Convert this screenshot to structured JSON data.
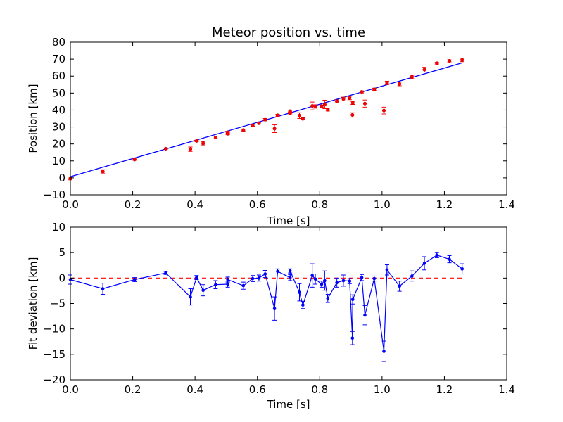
{
  "figure_title": "Meteor position vs. time",
  "colors": {
    "points": "#ff0000",
    "line": "#0000ff",
    "zero": "#ff0000",
    "axes": "#000000"
  },
  "chart_data": [
    {
      "type": "scatter",
      "title": "Meteor position vs. time",
      "xlabel": "Time [s]",
      "ylabel": "Position [km]",
      "xlim": [
        0,
        1.4
      ],
      "ylim": [
        -10,
        80
      ],
      "xticks": [
        "0.0",
        "0.2",
        "0.4",
        "0.6",
        "0.8",
        "1.0",
        "1.2",
        "1.4"
      ],
      "yticks": [
        "−10",
        "0",
        "10",
        "20",
        "30",
        "40",
        "50",
        "60",
        "70",
        "80"
      ],
      "grid": false,
      "points": [
        {
          "x": 0.0,
          "y": -0.3,
          "err": 0.9
        },
        {
          "x": 0.104,
          "y": 3.8,
          "err": 1.0
        },
        {
          "x": 0.206,
          "y": 10.8,
          "err": 0.4
        },
        {
          "x": 0.306,
          "y": 17.2,
          "err": 0.4
        },
        {
          "x": 0.385,
          "y": 16.9,
          "err": 1.3
        },
        {
          "x": 0.405,
          "y": 21.8,
          "err": 0.4
        },
        {
          "x": 0.426,
          "y": 20.4,
          "err": 1.0
        },
        {
          "x": 0.466,
          "y": 23.8,
          "err": 0.8
        },
        {
          "x": 0.505,
          "y": 26.0,
          "err": 0.6
        },
        {
          "x": 0.505,
          "y": 26.9,
          "err": 0.5
        },
        {
          "x": 0.555,
          "y": 28.2,
          "err": 0.6
        },
        {
          "x": 0.585,
          "y": 31.0,
          "err": 0.6
        },
        {
          "x": 0.605,
          "y": 32.2,
          "err": 0.5
        },
        {
          "x": 0.625,
          "y": 34.3,
          "err": 0.7
        },
        {
          "x": 0.655,
          "y": 29.0,
          "err": 2.3
        },
        {
          "x": 0.665,
          "y": 36.9,
          "err": 0.6
        },
        {
          "x": 0.705,
          "y": 38.3,
          "err": 0.6
        },
        {
          "x": 0.705,
          "y": 39.3,
          "err": 0.6
        },
        {
          "x": 0.735,
          "y": 36.7,
          "err": 1.7
        },
        {
          "x": 0.746,
          "y": 34.8,
          "err": 0.6
        },
        {
          "x": 0.776,
          "y": 42.4,
          "err": 2.3
        },
        {
          "x": 0.786,
          "y": 42.1,
          "err": 1.0
        },
        {
          "x": 0.806,
          "y": 42.3,
          "err": 0.6
        },
        {
          "x": 0.816,
          "y": 43.3,
          "err": 2.5
        },
        {
          "x": 0.826,
          "y": 40.2,
          "err": 0.8
        },
        {
          "x": 0.855,
          "y": 45.1,
          "err": 0.9
        },
        {
          "x": 0.876,
          "y": 46.5,
          "err": 1.1
        },
        {
          "x": 0.896,
          "y": 47.1,
          "err": 1.0
        },
        {
          "x": 0.905,
          "y": 37.1,
          "err": 1.3
        },
        {
          "x": 0.906,
          "y": 44.2,
          "err": 0.9
        },
        {
          "x": 0.935,
          "y": 50.7,
          "err": 0.6
        },
        {
          "x": 0.945,
          "y": 43.8,
          "err": 2.1
        },
        {
          "x": 0.975,
          "y": 52.2,
          "err": 0.7
        },
        {
          "x": 1.006,
          "y": 39.7,
          "err": 2.0
        },
        {
          "x": 1.016,
          "y": 56.0,
          "err": 1.0
        },
        {
          "x": 1.056,
          "y": 55.4,
          "err": 1.1
        },
        {
          "x": 1.096,
          "y": 59.5,
          "err": 1.0
        },
        {
          "x": 1.136,
          "y": 63.8,
          "err": 1.4
        },
        {
          "x": 1.176,
          "y": 67.6,
          "err": 0.5
        },
        {
          "x": 1.216,
          "y": 69.0,
          "err": 0.6
        },
        {
          "x": 1.257,
          "y": 69.5,
          "err": 1.0
        }
      ],
      "fit_line": {
        "x": [
          0.0,
          1.257
        ],
        "y": [
          0.7,
          67.8
        ]
      }
    },
    {
      "type": "line",
      "title": "",
      "xlabel": "Time [s]",
      "ylabel": "Fit deviation [km]",
      "xlim": [
        0,
        1.4
      ],
      "ylim": [
        -20,
        10
      ],
      "xticks": [
        "0.0",
        "0.2",
        "0.4",
        "0.6",
        "0.8",
        "1.0",
        "1.2",
        "1.4"
      ],
      "yticks": [
        "−20",
        "−15",
        "−10",
        "−5",
        "0",
        "5",
        "10"
      ],
      "grid": false,
      "reference_line": {
        "x": [
          0.0,
          1.257
        ],
        "y": [
          0,
          0
        ]
      },
      "points": [
        {
          "x": 0.0,
          "y": -0.3,
          "err": 0.9
        },
        {
          "x": 0.104,
          "y": -2.1,
          "err": 1.1
        },
        {
          "x": 0.206,
          "y": -0.3,
          "err": 0.4
        },
        {
          "x": 0.306,
          "y": 1.0,
          "err": 0.3
        },
        {
          "x": 0.385,
          "y": -3.7,
          "err": 1.6
        },
        {
          "x": 0.405,
          "y": 0.1,
          "err": 0.4
        },
        {
          "x": 0.426,
          "y": -2.4,
          "err": 1.1
        },
        {
          "x": 0.466,
          "y": -1.3,
          "err": 0.8
        },
        {
          "x": 0.505,
          "y": -1.2,
          "err": 0.6
        },
        {
          "x": 0.505,
          "y": -0.3,
          "err": 0.5
        },
        {
          "x": 0.555,
          "y": -1.5,
          "err": 0.7
        },
        {
          "x": 0.585,
          "y": -0.1,
          "err": 0.6
        },
        {
          "x": 0.605,
          "y": 0.0,
          "err": 0.6
        },
        {
          "x": 0.625,
          "y": 0.8,
          "err": 0.7
        },
        {
          "x": 0.655,
          "y": -6.0,
          "err": 2.3
        },
        {
          "x": 0.665,
          "y": 1.3,
          "err": 0.5
        },
        {
          "x": 0.705,
          "y": 0.1,
          "err": 0.6
        },
        {
          "x": 0.705,
          "y": 1.4,
          "err": 0.4
        },
        {
          "x": 0.735,
          "y": -2.8,
          "err": 1.7
        },
        {
          "x": 0.746,
          "y": -5.3,
          "err": 0.7
        },
        {
          "x": 0.776,
          "y": 0.5,
          "err": 2.3
        },
        {
          "x": 0.786,
          "y": -0.2,
          "err": 1.0
        },
        {
          "x": 0.806,
          "y": -1.2,
          "err": 0.6
        },
        {
          "x": 0.816,
          "y": -0.5,
          "err": 1.9
        },
        {
          "x": 0.826,
          "y": -4.0,
          "err": 0.8
        },
        {
          "x": 0.855,
          "y": -0.9,
          "err": 0.9
        },
        {
          "x": 0.876,
          "y": -0.5,
          "err": 1.1
        },
        {
          "x": 0.896,
          "y": -0.6,
          "err": 0.5
        },
        {
          "x": 0.905,
          "y": -11.8,
          "err": 1.3
        },
        {
          "x": 0.906,
          "y": -4.2,
          "err": 0.9
        },
        {
          "x": 0.935,
          "y": 0.1,
          "err": 0.6
        },
        {
          "x": 0.945,
          "y": -7.3,
          "err": 1.9
        },
        {
          "x": 0.975,
          "y": -0.1,
          "err": 0.5
        },
        {
          "x": 1.006,
          "y": -14.4,
          "err": 2.0
        },
        {
          "x": 1.016,
          "y": 1.6,
          "err": 1.0
        },
        {
          "x": 1.056,
          "y": -1.6,
          "err": 1.0
        },
        {
          "x": 1.096,
          "y": 0.4,
          "err": 1.0
        },
        {
          "x": 1.136,
          "y": 2.9,
          "err": 1.3
        },
        {
          "x": 1.176,
          "y": 4.5,
          "err": 0.5
        },
        {
          "x": 1.216,
          "y": 3.7,
          "err": 0.7
        },
        {
          "x": 1.257,
          "y": 1.8,
          "err": 1.0
        }
      ]
    }
  ]
}
